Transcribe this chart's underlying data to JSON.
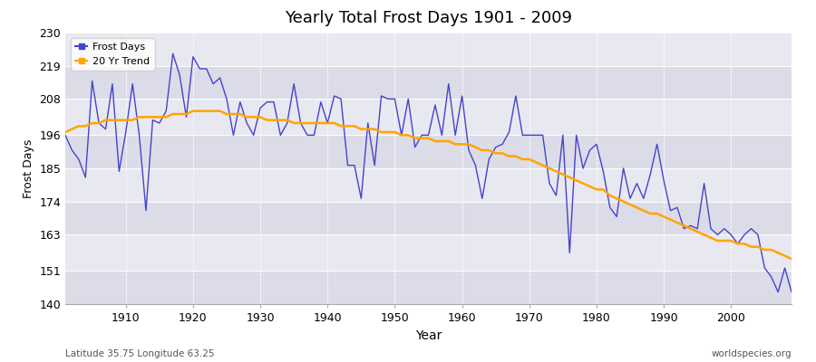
{
  "title": "Yearly Total Frost Days 1901 - 2009",
  "xlabel": "Year",
  "ylabel": "Frost Days",
  "subtitle_left": "Latitude 35.75 Longitude 63.25",
  "subtitle_right": "worldspecies.org",
  "line_color": "#4444cc",
  "trend_color": "#FFA500",
  "bg_color": "#e8e8f0",
  "ylim": [
    140,
    230
  ],
  "yticks": [
    140,
    151,
    163,
    174,
    185,
    196,
    208,
    219,
    230
  ],
  "years": [
    1901,
    1902,
    1903,
    1904,
    1905,
    1906,
    1907,
    1908,
    1909,
    1910,
    1911,
    1912,
    1913,
    1914,
    1915,
    1916,
    1917,
    1918,
    1919,
    1920,
    1921,
    1922,
    1923,
    1924,
    1925,
    1926,
    1927,
    1928,
    1929,
    1930,
    1931,
    1932,
    1933,
    1934,
    1935,
    1936,
    1937,
    1938,
    1939,
    1940,
    1941,
    1942,
    1943,
    1944,
    1945,
    1946,
    1947,
    1948,
    1949,
    1950,
    1951,
    1952,
    1953,
    1954,
    1955,
    1956,
    1957,
    1958,
    1959,
    1960,
    1961,
    1962,
    1963,
    1964,
    1965,
    1966,
    1967,
    1968,
    1969,
    1970,
    1971,
    1972,
    1973,
    1974,
    1975,
    1976,
    1977,
    1978,
    1979,
    1980,
    1981,
    1982,
    1983,
    1984,
    1985,
    1986,
    1987,
    1988,
    1989,
    1990,
    1991,
    1992,
    1993,
    1994,
    1995,
    1996,
    1997,
    1998,
    1999,
    2000,
    2001,
    2002,
    2003,
    2004,
    2005,
    2006,
    2007,
    2008,
    2009
  ],
  "frost_days": [
    196,
    191,
    188,
    182,
    214,
    200,
    198,
    213,
    184,
    197,
    213,
    196,
    171,
    201,
    200,
    204,
    223,
    216,
    202,
    222,
    218,
    218,
    213,
    215,
    208,
    196,
    207,
    200,
    196,
    205,
    207,
    207,
    196,
    200,
    213,
    200,
    196,
    196,
    207,
    200,
    209,
    208,
    186,
    186,
    175,
    200,
    186,
    209,
    208,
    208,
    196,
    208,
    192,
    196,
    196,
    206,
    196,
    213,
    196,
    209,
    191,
    186,
    175,
    188,
    192,
    193,
    197,
    209,
    196,
    196,
    196,
    196,
    180,
    176,
    196,
    157,
    196,
    185,
    191,
    193,
    184,
    172,
    169,
    185,
    175,
    180,
    175,
    183,
    193,
    181,
    171,
    172,
    165,
    166,
    165,
    180,
    165,
    163,
    165,
    163,
    160,
    163,
    165,
    163,
    152,
    149,
    144,
    152,
    144
  ],
  "trend_values": [
    197,
    198,
    199,
    199,
    200,
    200,
    201,
    201,
    201,
    201,
    201,
    202,
    202,
    202,
    202,
    202,
    203,
    203,
    203,
    204,
    204,
    204,
    204,
    204,
    203,
    203,
    203,
    202,
    202,
    202,
    201,
    201,
    201,
    201,
    200,
    200,
    200,
    200,
    200,
    200,
    200,
    199,
    199,
    199,
    198,
    198,
    198,
    197,
    197,
    197,
    196,
    196,
    195,
    195,
    195,
    194,
    194,
    194,
    193,
    193,
    193,
    192,
    191,
    191,
    190,
    190,
    189,
    189,
    188,
    188,
    187,
    186,
    185,
    184,
    183,
    182,
    181,
    180,
    179,
    178,
    178,
    176,
    175,
    174,
    173,
    172,
    171,
    170,
    170,
    169,
    168,
    167,
    166,
    165,
    164,
    163,
    162,
    161,
    161,
    161,
    160,
    160,
    159,
    159,
    158,
    158,
    157,
    156,
    155
  ]
}
